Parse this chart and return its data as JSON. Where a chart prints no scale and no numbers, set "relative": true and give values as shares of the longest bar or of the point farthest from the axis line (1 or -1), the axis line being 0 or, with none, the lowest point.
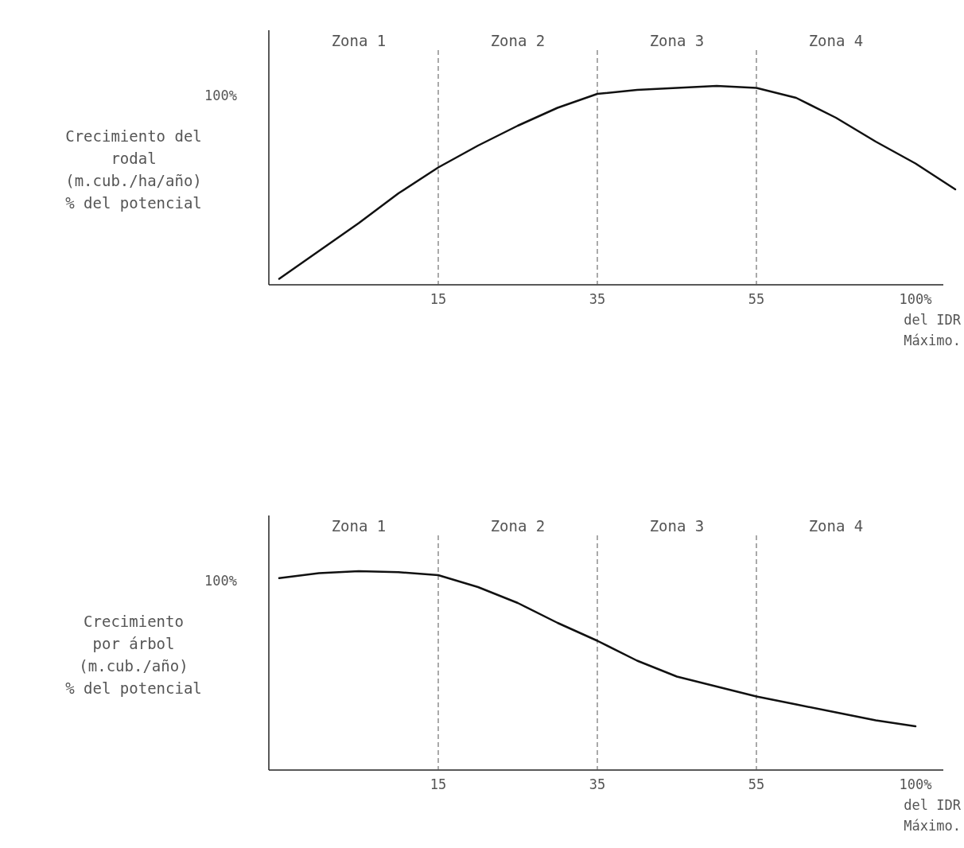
{
  "chart_data": [
    {
      "type": "line",
      "relative": true,
      "ylabel": "Crecimiento del\nrodal\n(m.cub./ha/año)\n% del potencial",
      "xlabel": "del IDR\nMáximo.",
      "categories": [
        null,
        null,
        null,
        null,
        "15",
        null,
        null,
        null,
        "35",
        null,
        null,
        null,
        "55",
        null,
        null,
        null,
        "100%",
        null
      ],
      "marker": "none",
      "line_style": "solid",
      "annotations": [
        "100%",
        "Zona 1",
        "Zona 2",
        "Zona 3",
        "Zona 4"
      ],
      "ref_lines": [
        {
          "axis": "x",
          "value": "15",
          "label": null,
          "line_style": "dashed",
          "color": "#555555"
        },
        {
          "axis": "x",
          "value": "35",
          "label": null,
          "line_style": "dashed",
          "color": "#555555"
        },
        {
          "axis": "x",
          "value": "55",
          "label": null,
          "line_style": "dashed",
          "color": "#555555"
        }
      ],
      "series": [
        {
          "color": "#111111",
          "values": [
            0.03,
            0.17,
            0.31,
            0.46,
            0.59,
            0.7,
            0.8,
            0.89,
            0.96,
            0.98,
            0.99,
            1,
            0.99,
            0.94,
            0.84,
            0.72,
            0.61,
            0.48
          ]
        }
      ]
    },
    {
      "type": "line",
      "relative": true,
      "ylabel": "Crecimiento\npor árbol\n(m.cub./año)\n% del potencial",
      "xlabel": "del IDR\nMáximo.",
      "categories": [
        null,
        null,
        null,
        null,
        "15",
        null,
        null,
        null,
        "35",
        null,
        null,
        null,
        "55",
        null,
        null,
        null,
        "100%",
        null
      ],
      "marker": "none",
      "line_style": "solid",
      "annotations": [
        "100%",
        "Zona 1",
        "Zona 2",
        "Zona 3",
        "Zona 4"
      ],
      "ref_lines": [
        {
          "axis": "x",
          "value": "15",
          "label": null,
          "line_style": "dashed",
          "color": "#555555"
        },
        {
          "axis": "x",
          "value": "35",
          "label": null,
          "line_style": "dashed",
          "color": "#555555"
        },
        {
          "axis": "x",
          "value": "55",
          "label": null,
          "line_style": "dashed",
          "color": "#555555"
        }
      ],
      "series": [
        {
          "color": "#111111",
          "values": [
            0.965,
            0.99,
            1,
            0.995,
            0.98,
            0.92,
            0.84,
            0.74,
            0.65,
            0.55,
            0.47,
            0.42,
            0.37,
            0.33,
            0.29,
            0.25,
            0.22,
            null
          ]
        }
      ]
    }
  ]
}
